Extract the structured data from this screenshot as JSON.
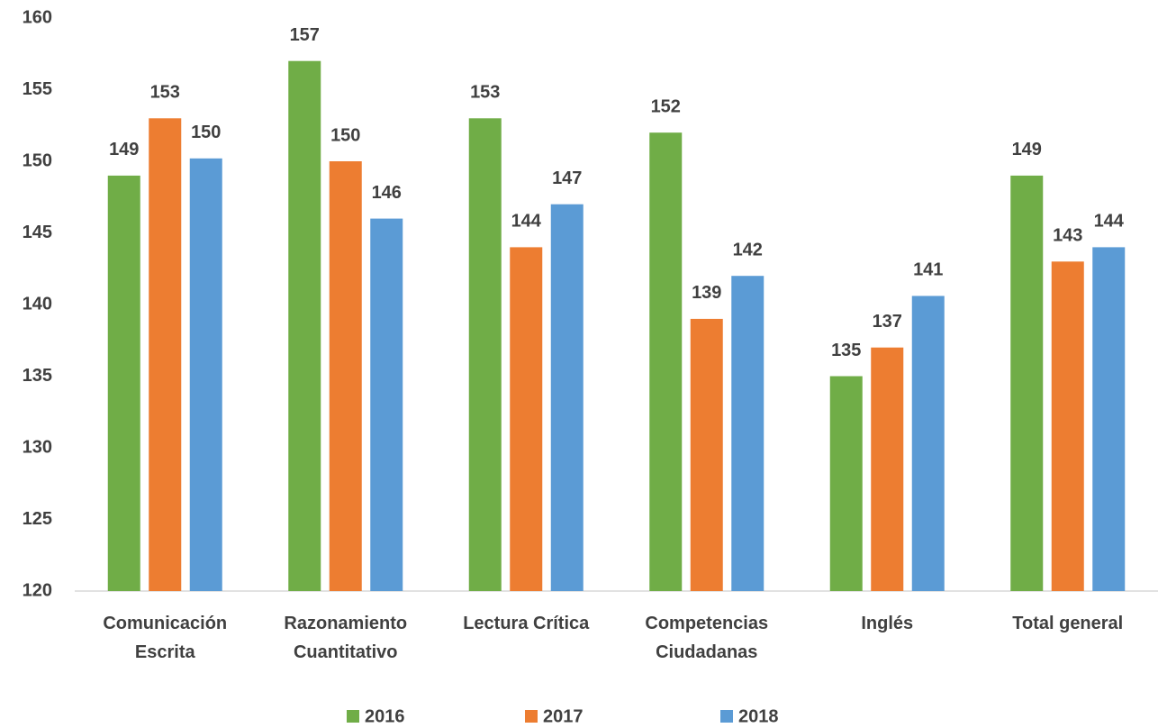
{
  "chart_data": {
    "type": "bar",
    "categories": [
      "Comunicación Escrita",
      "Razonamiento Cuantitativo",
      "Lectura Crítica",
      "Competencias Ciudadanas",
      "Inglés",
      "Total general"
    ],
    "series": [
      {
        "name": "2016",
        "color": "#70ad47",
        "values": [
          149,
          157,
          153,
          152,
          135,
          149
        ]
      },
      {
        "name": "2017",
        "color": "#ed7d31",
        "values": [
          153,
          150,
          144,
          139,
          137,
          143
        ]
      },
      {
        "name": "2018",
        "color": "#5b9bd5",
        "values": [
          150.2,
          146,
          147,
          142,
          140.6,
          144
        ],
        "value_labels": [
          "150",
          "146",
          "147",
          "142",
          "141",
          "144"
        ]
      }
    ],
    "ylim": [
      120,
      160
    ],
    "yticks": [
      120,
      125,
      130,
      135,
      140,
      145,
      150,
      155,
      160
    ],
    "grid": false,
    "legend": "bottom"
  }
}
